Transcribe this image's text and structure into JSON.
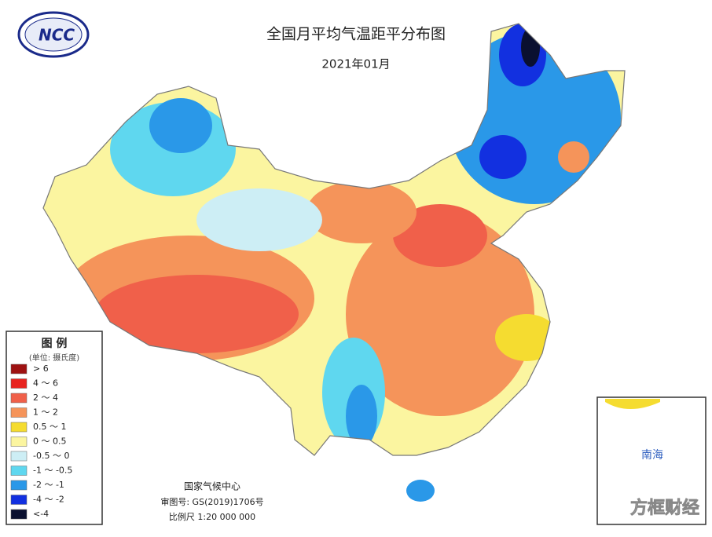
{
  "header": {
    "logo": "NCC",
    "title": "全国月平均气温距平分布图",
    "subtitle": "2021年01月"
  },
  "legend": {
    "title": "图 例",
    "unit": "(单位: 摄氏度)",
    "items": [
      {
        "label": "> 6",
        "color": "#9e1212"
      },
      {
        "label": "4 ～ 6",
        "color": "#e8231f"
      },
      {
        "label": "2 ～ 4",
        "color": "#f0604a"
      },
      {
        "label": "1 ～ 2",
        "color": "#f5945a"
      },
      {
        "label": "0.5 ～ 1",
        "color": "#f5dc30"
      },
      {
        "label": "0 ～ 0.5",
        "color": "#fbf5a0"
      },
      {
        "label": "-0.5 ～ 0",
        "color": "#cdeef5"
      },
      {
        "label": "-1 ～ -0.5",
        "color": "#5fd7ef"
      },
      {
        "label": "-2 ～ -1",
        "color": "#2a98e8"
      },
      {
        "label": "-4 ～ -2",
        "color": "#1230e0"
      },
      {
        "label": "<-4",
        "color": "#0a1030"
      }
    ]
  },
  "footer": {
    "org": "国家气候中心",
    "map_no": "审图号: GS(2019)1706号",
    "scale": "比例尺 1:20 000 000"
  },
  "inset": {
    "label": "南海"
  },
  "watermark": "方框财经"
}
